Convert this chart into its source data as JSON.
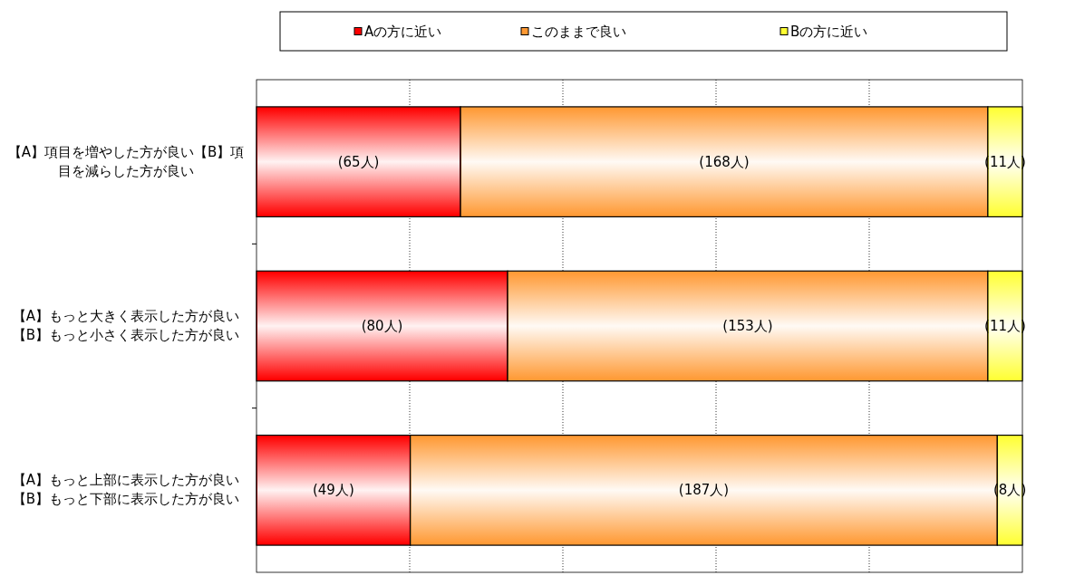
{
  "chart_data": {
    "type": "bar",
    "orientation": "horizontal",
    "stacked": true,
    "legend": "top",
    "grid": "x",
    "categories": [
      "【A】項目を増やした方が良い【B】項目を減らした方が良い",
      "【A】もっと大きく表示した方が良い【B】もっと小さく表示した方が良い",
      "【A】もっと上部に表示した方が良い【B】もっと下部に表示した方が良い"
    ],
    "xlim": [
      0,
      244
    ],
    "xticks": [
      {
        "value": 48.8,
        "label": null
      },
      {
        "value": 97.6,
        "label": null
      },
      {
        "value": 146.4,
        "label": null
      },
      {
        "value": 195.2,
        "label": null
      }
    ],
    "tick_labels": "y",
    "series": [
      {
        "name": "Aの方に近い",
        "color": "#ff0000",
        "values": [
          65,
          80,
          49
        ],
        "value_labels": [
          "(65人)",
          "(80人)",
          "(49人)"
        ]
      },
      {
        "name": "このままで良い",
        "color": "#ff9933",
        "values": [
          168,
          153,
          187
        ],
        "value_labels": [
          "(168人)",
          "(153人)",
          "(187人)"
        ]
      },
      {
        "name": "Bの方に近い",
        "color": "#ffff33",
        "values": [
          11,
          11,
          8
        ],
        "value_labels": [
          "(11人)",
          "(11人)",
          "(8人)"
        ]
      }
    ]
  }
}
